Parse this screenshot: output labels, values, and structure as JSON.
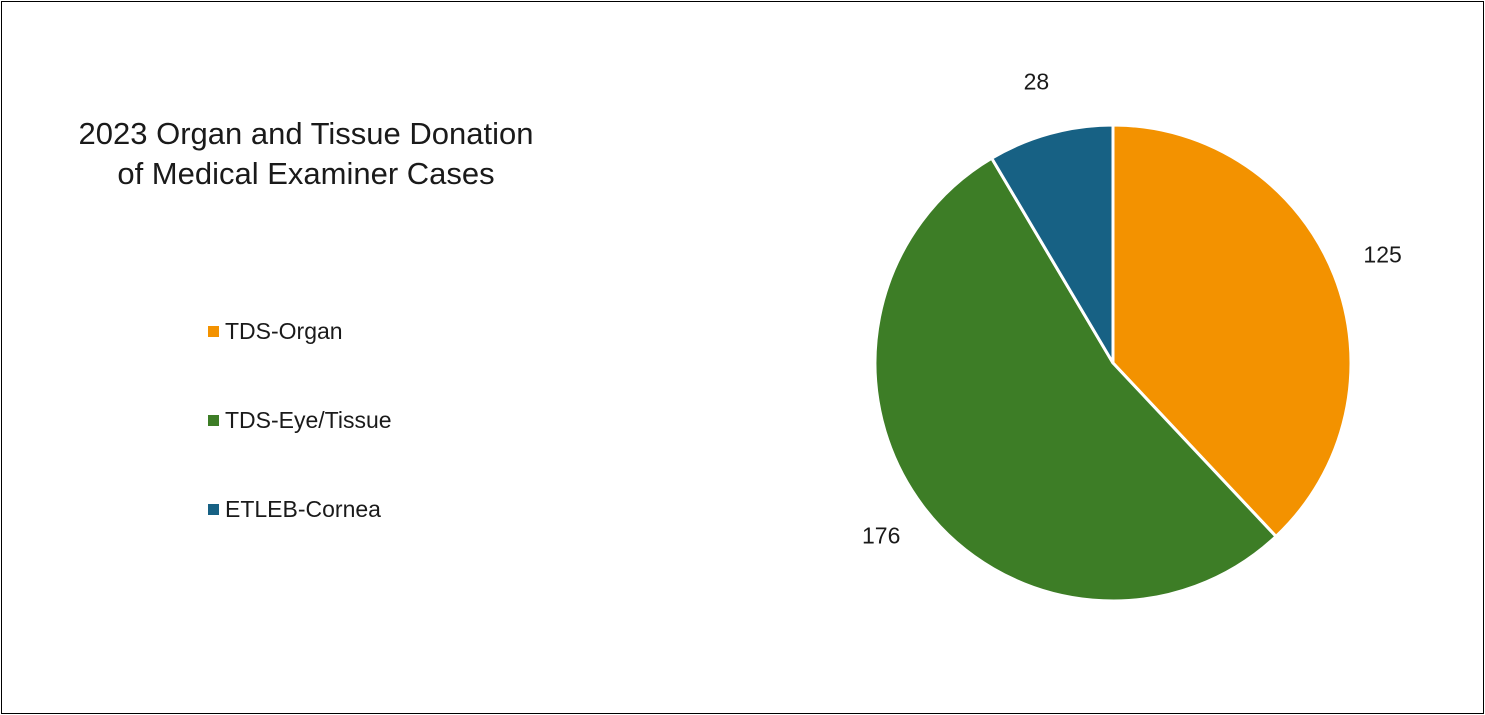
{
  "chart_data": {
    "type": "pie",
    "title": "2023 Organ and Tissue Donation of Medical Examiner Cases",
    "title_lines": [
      "2023 Organ and Tissue Donation",
      "of Medical Examiner Cases"
    ],
    "categories": [
      "TDS-Organ",
      "TDS-Eye/Tissue",
      "ETLEB-Cornea"
    ],
    "values": [
      125,
      176,
      28
    ],
    "colors": [
      "#F39200",
      "#3D7D26",
      "#176184"
    ],
    "data_labels_visible": true,
    "legend_placement": "left"
  }
}
